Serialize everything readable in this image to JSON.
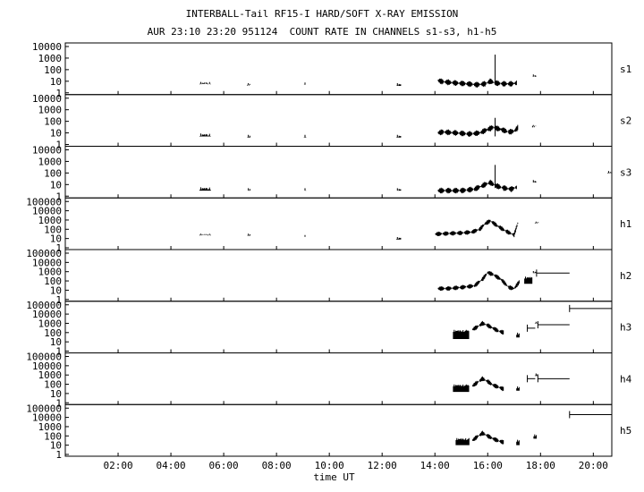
{
  "title": "INTERBALL-Tail RF15-I HARD/SOFT X-RAY EMISSION",
  "subtitle": "AUR 23:10 23:20 951124  COUNT RATE IN CHANNELS s1-s3, h1-h5",
  "xlabel": "time UT",
  "chart_data": {
    "type": "line",
    "x_unit": "hours UT",
    "xlim": [
      0,
      20.7
    ],
    "x_ticks": [
      "02:00",
      "04:00",
      "06:00",
      "08:00",
      "10:00",
      "12:00",
      "14:00",
      "16:00",
      "18:00",
      "20:00"
    ],
    "x_tick_values": [
      2,
      4,
      6,
      8,
      10,
      12,
      14,
      16,
      18,
      20
    ],
    "grid": false,
    "yscale": "log",
    "panels": [
      {
        "name": "s1",
        "ylim": [
          1,
          10000
        ],
        "yticks": [
          "10000",
          "1000",
          "100",
          "10",
          "1"
        ],
        "bursts": [
          [
            5.1,
            5.5,
            6,
            9
          ],
          [
            6.9,
            7.0,
            5,
            7
          ],
          [
            9.05,
            9.12,
            5,
            8
          ],
          [
            12.55,
            12.72,
            4,
            7
          ]
        ],
        "trace": {
          "x": [
            14.1,
            14.3,
            14.8,
            15.2,
            15.6,
            15.9,
            16.1,
            16.3,
            16.6,
            16.9,
            17.1
          ],
          "y": [
            12,
            9,
            7,
            6,
            5,
            6,
            10,
            7,
            6,
            6,
            7
          ]
        },
        "spikes": [
          [
            16.28,
            2000
          ]
        ],
        "late": [
          [
            17.7,
            17.85,
            25,
            40
          ]
        ],
        "steps": []
      },
      {
        "name": "s2",
        "ylim": [
          1,
          10000
        ],
        "yticks": [
          "10000",
          "1000",
          "100",
          "10",
          "1"
        ],
        "bursts": [
          [
            5.1,
            5.5,
            5,
            9
          ],
          [
            6.9,
            7.0,
            4,
            7
          ],
          [
            9.05,
            9.12,
            4,
            7
          ],
          [
            12.55,
            12.72,
            4,
            7
          ]
        ],
        "trace": {
          "x": [
            14.1,
            14.3,
            14.8,
            15.3,
            15.7,
            16.0,
            16.2,
            16.5,
            16.8,
            17.0,
            17.15
          ],
          "y": [
            10,
            12,
            10,
            8,
            10,
            20,
            30,
            20,
            12,
            14,
            30
          ]
        },
        "spikes": [
          [
            16.28,
            200
          ]
        ],
        "late": [
          [
            17.7,
            17.85,
            40,
            50
          ]
        ],
        "steps": []
      },
      {
        "name": "s3",
        "ylim": [
          1,
          10000
        ],
        "yticks": [
          "10000",
          "1000",
          "100",
          "10",
          "1"
        ],
        "bursts": [
          [
            5.1,
            5.5,
            3,
            6
          ],
          [
            6.9,
            7.0,
            3,
            5
          ],
          [
            9.05,
            9.12,
            3,
            5
          ],
          [
            12.55,
            12.72,
            3,
            5
          ]
        ],
        "trace": {
          "x": [
            14.1,
            14.5,
            15.0,
            15.5,
            15.9,
            16.1,
            16.3,
            16.6,
            16.9,
            17.1
          ],
          "y": [
            3,
            3,
            3,
            4,
            10,
            15,
            8,
            5,
            4,
            6
          ]
        },
        "spikes": [
          [
            16.28,
            500
          ]
        ],
        "late": [
          [
            17.7,
            17.85,
            15,
            25
          ],
          [
            20.55,
            20.7,
            100,
            150
          ]
        ],
        "steps": []
      },
      {
        "name": "h1",
        "ylim": [
          1,
          100000
        ],
        "yticks": [
          "100000",
          "10000",
          "1000",
          "100",
          "10",
          "1"
        ],
        "bursts": [
          [
            5.1,
            5.5,
            25,
            35
          ],
          [
            6.9,
            7.0,
            20,
            35
          ],
          [
            9.05,
            9.12,
            15,
            25
          ],
          [
            12.55,
            12.72,
            8,
            15
          ]
        ],
        "trace": {
          "x": [
            14.0,
            14.5,
            15.0,
            15.4,
            15.7,
            15.9,
            16.1,
            16.4,
            16.7,
            17.0,
            17.15
          ],
          "y": [
            30,
            35,
            40,
            50,
            100,
            400,
            800,
            200,
            60,
            25,
            600
          ]
        },
        "spikes": [],
        "late": [
          [
            17.8,
            17.95,
            500,
            700
          ]
        ],
        "steps": []
      },
      {
        "name": "h2",
        "ylim": [
          1,
          100000
        ],
        "yticks": [
          "100000",
          "10000",
          "1000",
          "100",
          "10",
          "1"
        ],
        "bursts": [],
        "trace": {
          "x": [
            14.1,
            14.5,
            15.0,
            15.5,
            15.8,
            16.0,
            16.2,
            16.5,
            16.8,
            17.0,
            17.2
          ],
          "y": [
            15,
            15,
            20,
            30,
            150,
            800,
            500,
            150,
            20,
            15,
            80
          ]
        },
        "spikes": [],
        "late": [
          [
            17.4,
            17.7,
            50,
            300
          ],
          [
            17.7,
            17.85,
            700,
            1200
          ]
        ],
        "steps": [
          {
            "x": [
              17.85,
              19.1
            ],
            "y": 700
          }
        ]
      },
      {
        "name": "h3",
        "ylim": [
          1,
          100000
        ],
        "yticks": [
          "100000",
          "10000",
          "1000",
          "100",
          "10",
          "1"
        ],
        "bursts": [
          [
            14.7,
            15.3,
            20,
            200
          ]
        ],
        "trace": {
          "x": [
            15.4,
            15.6,
            15.8,
            16.0,
            16.2,
            16.4,
            16.6
          ],
          "y": [
            200,
            400,
            1000,
            600,
            300,
            150,
            100
          ]
        },
        "spikes": [],
        "late": [
          [
            17.1,
            17.2,
            30,
            100
          ],
          [
            17.8,
            17.9,
            1000,
            1500
          ]
        ],
        "steps": [
          {
            "x": [
              17.5,
              17.8
            ],
            "y": 300
          },
          {
            "x": [
              17.9,
              19.1
            ],
            "y": 700
          },
          {
            "x": [
              19.1,
              20.7
            ],
            "y": 40000
          }
        ]
      },
      {
        "name": "h4",
        "ylim": [
          1,
          100000
        ],
        "yticks": [
          "100000",
          "10000",
          "1000",
          "100",
          "10",
          "1"
        ],
        "bursts": [
          [
            14.7,
            15.3,
            15,
            100
          ]
        ],
        "trace": {
          "x": [
            15.4,
            15.6,
            15.8,
            16.0,
            16.2,
            16.4,
            16.6
          ],
          "y": [
            60,
            150,
            400,
            200,
            80,
            50,
            30
          ]
        },
        "spikes": [],
        "late": [
          [
            17.1,
            17.2,
            20,
            60
          ],
          [
            17.8,
            17.9,
            800,
            1500
          ]
        ],
        "steps": [
          {
            "x": [
              17.5,
              17.8
            ],
            "y": 400
          },
          {
            "x": [
              17.9,
              19.1
            ],
            "y": 400
          }
        ]
      },
      {
        "name": "h5",
        "ylim": [
          1,
          100000
        ],
        "yticks": [
          "100000",
          "10000",
          "1000",
          "100",
          "10",
          "1"
        ],
        "bursts": [
          [
            14.8,
            15.3,
            10,
            60
          ]
        ],
        "trace": {
          "x": [
            15.4,
            15.6,
            15.8,
            16.0,
            16.2,
            16.4,
            16.6
          ],
          "y": [
            30,
            80,
            200,
            100,
            50,
            30,
            20
          ]
        },
        "spikes": [],
        "late": [
          [
            17.1,
            17.2,
            10,
            40
          ],
          [
            17.75,
            17.85,
            50,
            150
          ]
        ],
        "steps": [
          {
            "x": [
              19.1,
              20.7
            ],
            "y": 20000
          }
        ]
      }
    ]
  }
}
